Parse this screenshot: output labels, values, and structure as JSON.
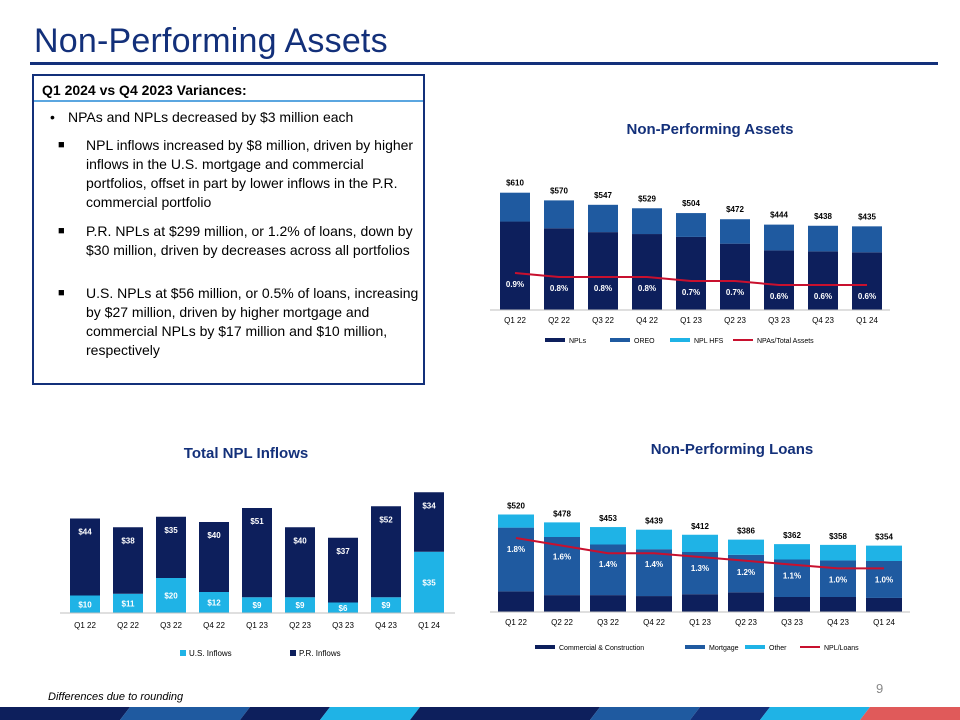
{
  "page": {
    "title": "Non-Performing Assets",
    "footnote": "Differences due to rounding",
    "page_number": "9"
  },
  "variances": {
    "heading": "Q1 2024 vs Q4 2023 Variances:",
    "bullet": "NPAs and NPLs decreased by $3 million each",
    "sub_bullets": [
      "NPL inflows increased by $8 million, driven by higher inflows in the U.S. mortgage and commercial portfolios, offset in part by lower inflows in the P.R. commercial portfolio",
      "P.R. NPLs at $299 million, or 1.2% of loans, down by $30 million, driven by decreases across all portfolios",
      "U.S. NPLs at $56 million, or 0.5% of loans, increasing by $27 million, driven by higher mortgage and commercial NPLs by $17 million and $10 million, respectively"
    ]
  },
  "colors": {
    "navy": "#0d1f5c",
    "mid_blue": "#1f5aa0",
    "light_blue": "#1fb3e6",
    "red": "#c8102e",
    "title_blue": "#13307a"
  },
  "chart_data": [
    {
      "id": "npa",
      "type": "bar",
      "title": "Non-Performing Assets",
      "categories": [
        "Q1 22",
        "Q2 22",
        "Q3 22",
        "Q4 22",
        "Q1 23",
        "Q2 23",
        "Q3 23",
        "Q4 23",
        "Q1 24"
      ],
      "ylim": [
        0,
        650
      ],
      "series": [
        {
          "name": "NPLs",
          "values": [
            460,
            425,
            405,
            395,
            380,
            345,
            310,
            305,
            300
          ]
        },
        {
          "name": "OREO",
          "values": [
            150,
            145,
            142,
            134,
            124,
            127,
            134,
            133,
            135
          ]
        },
        {
          "name": "NPL HFS",
          "values": [
            0,
            0,
            0,
            0,
            0,
            0,
            0,
            0,
            0
          ]
        }
      ],
      "totals": [
        "$610",
        "$570",
        "$547",
        "$529",
        "$504",
        "$472",
        "$444",
        "$438",
        "$435"
      ],
      "line": {
        "name": "NPAs/Total Assets",
        "values": [
          0.9,
          0.8,
          0.8,
          0.8,
          0.7,
          0.7,
          0.6,
          0.6,
          0.6
        ],
        "labels": [
          "0.9%",
          "0.8%",
          "0.8%",
          "0.8%",
          "0.7%",
          "0.7%",
          "0.6%",
          "0.6%",
          "0.6%"
        ]
      },
      "legend": [
        "NPLs",
        "OREO",
        "NPL HFS",
        "NPAs/Total Assets"
      ]
    },
    {
      "id": "inflows",
      "type": "bar",
      "title": "Total NPL Inflows",
      "categories": [
        "Q1 22",
        "Q2 22",
        "Q3 22",
        "Q4 22",
        "Q1 23",
        "Q2 23",
        "Q3 23",
        "Q4 23",
        "Q1 24"
      ],
      "ylim": [
        0,
        75
      ],
      "series": [
        {
          "name": "U.S. Inflows",
          "values": [
            10,
            11,
            20,
            12,
            9,
            9,
            6,
            9,
            35
          ]
        },
        {
          "name": "P.R. Inflows",
          "values": [
            44,
            38,
            35,
            40,
            51,
            40,
            37,
            52,
            34
          ]
        }
      ],
      "us_labels": [
        "$10",
        "$11",
        "$20",
        "$12",
        "$9",
        "$9",
        "$6",
        "$9",
        "$35"
      ],
      "pr_labels": [
        "$44",
        "$38",
        "$35",
        "$40",
        "$51",
        "$40",
        "$37",
        "$52",
        "$34"
      ],
      "legend": [
        "U.S. Inflows",
        "P.R. Inflows"
      ]
    },
    {
      "id": "npl",
      "type": "bar",
      "title": "Non-Performing Loans",
      "categories": [
        "Q1 22",
        "Q2 22",
        "Q3 22",
        "Q4 22",
        "Q1 23",
        "Q2 23",
        "Q3 23",
        "Q4 23",
        "Q1 24"
      ],
      "ylim": [
        0,
        560
      ],
      "series": [
        {
          "name": "Commercial & Construction",
          "values": [
            110,
            90,
            90,
            85,
            95,
            105,
            80,
            80,
            75
          ]
        },
        {
          "name": "Mortgage",
          "values": [
            340,
            310,
            270,
            250,
            225,
            200,
            200,
            195,
            197
          ]
        },
        {
          "name": "Other",
          "values": [
            70,
            78,
            93,
            104,
            92,
            81,
            82,
            83,
            82
          ]
        }
      ],
      "totals": [
        "$520",
        "$478",
        "$453",
        "$439",
        "$412",
        "$386",
        "$362",
        "$358",
        "$354"
      ],
      "line": {
        "name": "NPL/Loans",
        "values": [
          1.8,
          1.6,
          1.4,
          1.4,
          1.3,
          1.2,
          1.1,
          1.0,
          1.0
        ],
        "labels": [
          "1.8%",
          "1.6%",
          "1.4%",
          "1.4%",
          "1.3%",
          "1.2%",
          "1.1%",
          "1.0%",
          "1.0%"
        ]
      },
      "legend": [
        "Commercial & Construction",
        "Mortgage",
        "Other",
        "NPL/Loans"
      ]
    }
  ]
}
